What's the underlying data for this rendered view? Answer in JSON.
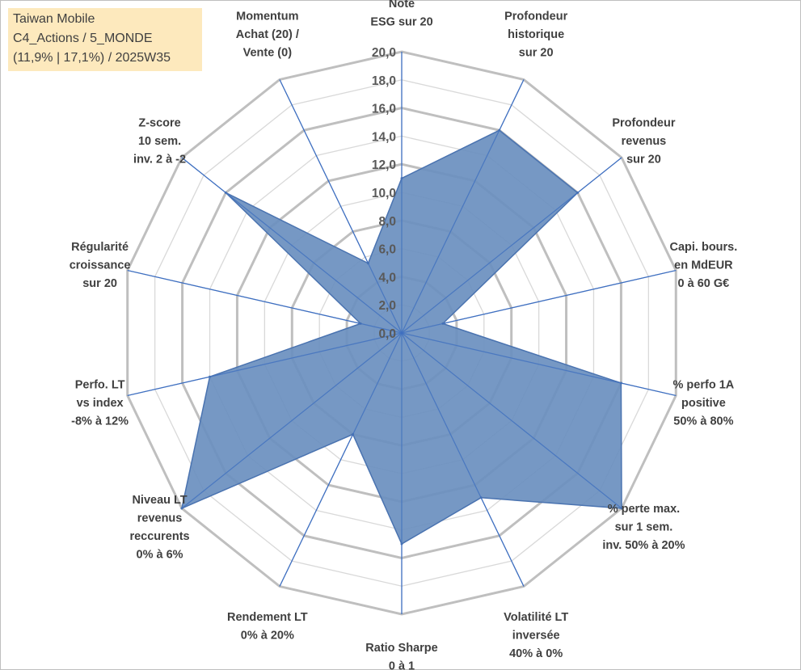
{
  "info_box": {
    "line1": "Taiwan Mobile",
    "line2": "C4_Actions / 5_MONDE",
    "line3": "(11,9% | 17,1%) / 2025W35",
    "background": "#fde9bd"
  },
  "chart_data": {
    "type": "radar",
    "rmin": 0,
    "rmax": 20,
    "tick_step": 2,
    "tick_labels": [
      "0,0",
      "2,0",
      "4,0",
      "6,0",
      "8,0",
      "10,0",
      "12,0",
      "14,0",
      "16,0",
      "18,0",
      "20,0"
    ],
    "grid": true,
    "legend": "none",
    "colors": {
      "fill": "#6a8fbf",
      "stroke": "#4a73b0",
      "spoke": "#3f6fc0",
      "grid_minor": "#d9d9d9",
      "grid_major": "#bfbfbf"
    },
    "axes": [
      {
        "label": [
          "Note",
          "ESG sur 20"
        ]
      },
      {
        "label": [
          "Profondeur",
          "historique",
          "sur 20"
        ]
      },
      {
        "label": [
          "Profondeur",
          "revenus",
          "sur 20"
        ]
      },
      {
        "label": [
          "Capi. bours.",
          "en MdEUR",
          "0 à 60 G€"
        ]
      },
      {
        "label": [
          "% perfo 1A",
          "positive",
          "50% à 80%"
        ]
      },
      {
        "label": [
          "% perte max.",
          "sur 1 sem.",
          "inv. 50% à 20%"
        ]
      },
      {
        "label": [
          "Volatilité LT",
          "inversée",
          "40% à 0%"
        ]
      },
      {
        "label": [
          "Ratio Sharpe",
          "0 à 1"
        ]
      },
      {
        "label": [
          "Rendement LT",
          "0% à 20%"
        ]
      },
      {
        "label": [
          "Niveau LT",
          "revenus",
          "reccurents",
          "0% à 6%"
        ]
      },
      {
        "label": [
          "Perfo. LT",
          "vs index",
          "-8% à 12%"
        ]
      },
      {
        "label": [
          "Régularité",
          "croissance",
          "sur 20"
        ]
      },
      {
        "label": [
          "Z-score",
          "10 sem.",
          "inv. 2 à -2"
        ]
      },
      {
        "label": [
          "Momentum",
          "Achat (20) /",
          "Vente (0)"
        ]
      }
    ],
    "series": [
      {
        "values": [
          11,
          16,
          16,
          3,
          16,
          20,
          13,
          15,
          8,
          20,
          14,
          3,
          16,
          5.5
        ]
      }
    ]
  }
}
